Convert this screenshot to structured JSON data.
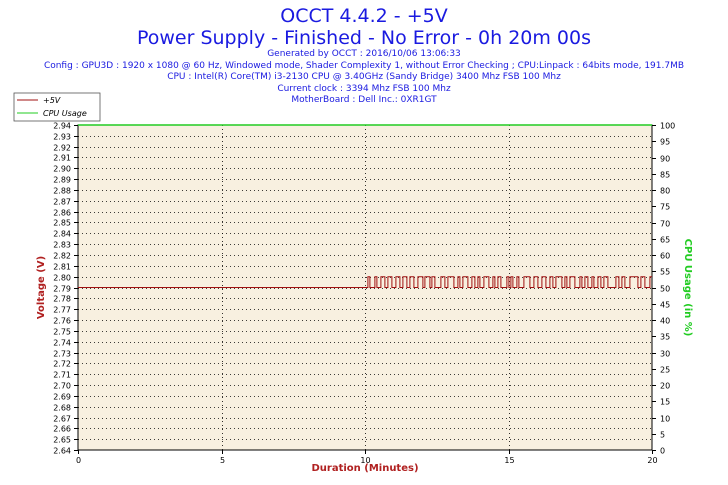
{
  "header": {
    "title": "OCCT 4.4.2 - +5V",
    "subtitle": "Power Supply - Finished - No Error - 0h 20m 00s",
    "generated": "Generated by OCCT : 2016/10/06 13:06:33",
    "config": "Config : GPU3D : 1920 x 1080 @ 60 Hz, Windowed mode, Shader Complexity 1, without Error Checking ; CPU:Linpack : 64bits mode, 191.7MB",
    "cpu": "CPU : Intel(R) Core(TM) i3-2130 CPU @ 3.40GHz (Sandy Bridge) 3400 Mhz FSB 100 Mhz",
    "clock": "Current clock : 3394 Mhz FSB 100 Mhz",
    "motherboard": "MotherBoard : Dell Inc.: 0XR1GT"
  },
  "colors": {
    "voltage": "#a01010",
    "cpu": "#22cc22",
    "plot_bg": "#f8f0e0",
    "text_blue": "#1a1ae0",
    "axis_label": "#b02020"
  },
  "chart_data": {
    "type": "line",
    "xlabel": "Duration (Minutes)",
    "ylabel_left": "Voltage (V)",
    "ylabel_right": "CPU Usage (in %)",
    "xlim": [
      0,
      20
    ],
    "ylim_left": [
      2.64,
      2.94
    ],
    "ylim_right": [
      0,
      100
    ],
    "x_ticks": [
      0,
      5,
      10,
      15,
      20
    ],
    "y_ticks_left": [
      "2.64",
      "2.65",
      "2.66",
      "2.67",
      "2.68",
      "2.69",
      "2.70",
      "2.71",
      "2.72",
      "2.73",
      "2.74",
      "2.75",
      "2.76",
      "2.77",
      "2.78",
      "2.79",
      "2.80",
      "2.81",
      "2.82",
      "2.83",
      "2.84",
      "2.85",
      "2.86",
      "2.87",
      "2.88",
      "2.89",
      "2.90",
      "2.91",
      "2.92",
      "2.93",
      "2.94"
    ],
    "y_ticks_right": [
      0,
      5,
      10,
      15,
      20,
      25,
      30,
      35,
      40,
      45,
      50,
      55,
      60,
      65,
      70,
      75,
      80,
      85,
      90,
      95,
      100
    ],
    "grid": true,
    "legend_position": "top-left",
    "series": [
      {
        "name": "+5V",
        "axis": "left",
        "segments": [
          {
            "x_start": 0,
            "x_end": 10.1,
            "value": 2.79
          },
          {
            "x_start": 10.1,
            "x_end": 20,
            "oscillates_between": [
              2.79,
              2.8
            ]
          }
        ]
      },
      {
        "name": "CPU Usage",
        "axis": "right",
        "x": [
          0,
          20
        ],
        "values": [
          100,
          100
        ]
      }
    ]
  }
}
